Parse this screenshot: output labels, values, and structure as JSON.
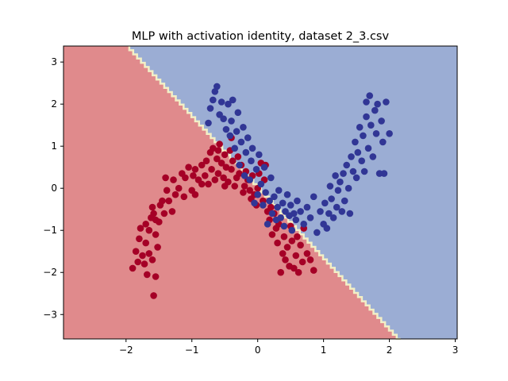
{
  "chart_data": {
    "type": "scatter",
    "title": "MLP with activation identity, dataset 2_3.csv",
    "xlabel": "",
    "ylabel": "",
    "xlim": [
      -2.95,
      3.03
    ],
    "ylim": [
      -3.58,
      3.38
    ],
    "xticks": [
      -2,
      -1,
      0,
      1,
      2,
      3
    ],
    "xtick_labels": [
      "−2",
      "−1",
      "0",
      "1",
      "2",
      "3"
    ],
    "yticks": [
      -3,
      -2,
      -1,
      0,
      1,
      2,
      3
    ],
    "ytick_labels": [
      "−3",
      "−2",
      "−1",
      "0",
      "1",
      "2",
      "3"
    ],
    "grid": false,
    "decision_boundary": {
      "type": "linear",
      "points": [
        [
          -1.95,
          3.38
        ],
        [
          2.17,
          -3.58
        ]
      ],
      "region_colors": {
        "left_below": "#e08a8c",
        "right_above": "#9badd4",
        "boundary": "#f2efc6"
      }
    },
    "series": [
      {
        "color": "#a50026",
        "points": [
          [
            -1.9,
            -1.9
          ],
          [
            -1.85,
            -1.5
          ],
          [
            -1.8,
            -1.2
          ],
          [
            -1.78,
            -0.95
          ],
          [
            -1.75,
            -1.6
          ],
          [
            -1.72,
            -1.8
          ],
          [
            -1.7,
            -1.3
          ],
          [
            -1.68,
            -2.05
          ],
          [
            -1.65,
            -1.55
          ],
          [
            -1.65,
            -1.0
          ],
          [
            -1.62,
            -0.7
          ],
          [
            -1.6,
            -1.7
          ],
          [
            -1.58,
            -2.55
          ],
          [
            -1.58,
            -0.6
          ],
          [
            -1.55,
            -1.1
          ],
          [
            -1.55,
            -2.1
          ],
          [
            -1.52,
            -1.4
          ],
          [
            -1.5,
            -0.8
          ],
          [
            -1.48,
            -0.4
          ],
          [
            -1.45,
            -0.3
          ],
          [
            -1.42,
            -0.6
          ],
          [
            -1.4,
            0.25
          ],
          [
            -1.38,
            -0.05
          ],
          [
            -1.35,
            -0.3
          ],
          [
            -1.3,
            -0.55
          ],
          [
            -1.28,
            0.2
          ],
          [
            -1.25,
            -0.15
          ],
          [
            -1.2,
            0.0
          ],
          [
            -1.15,
            0.35
          ],
          [
            -1.1,
            0.25
          ],
          [
            -1.05,
            0.5
          ],
          [
            -1.0,
            -0.05
          ],
          [
            -0.98,
            0.3
          ],
          [
            -0.95,
            0.45
          ],
          [
            -0.9,
            0.2
          ],
          [
            -0.85,
            0.55
          ],
          [
            -0.8,
            0.3
          ],
          [
            -0.78,
            0.65
          ],
          [
            -0.75,
            0.1
          ],
          [
            -0.72,
            0.85
          ],
          [
            -0.7,
            0.45
          ],
          [
            -0.68,
            0.95
          ],
          [
            -0.65,
            0.2
          ],
          [
            -0.62,
            0.7
          ],
          [
            -0.6,
            0.35
          ],
          [
            -0.58,
            1.05
          ],
          [
            -0.55,
            0.6
          ],
          [
            -0.52,
            0.25
          ],
          [
            -0.5,
            0.8
          ],
          [
            -0.48,
            0.5
          ],
          [
            -0.45,
            0.15
          ],
          [
            -0.42,
            0.9
          ],
          [
            -0.4,
            0.45
          ],
          [
            -0.38,
            0.65
          ],
          [
            -0.35,
            0.05
          ],
          [
            -0.32,
            0.25
          ],
          [
            -0.3,
            0.75
          ],
          [
            -0.28,
            0.35
          ],
          [
            -0.25,
            0.55
          ],
          [
            -0.22,
            -0.1
          ],
          [
            -0.2,
            0.05
          ],
          [
            -0.18,
            0.4
          ],
          [
            -0.15,
            0.2
          ],
          [
            -0.12,
            -0.05
          ],
          [
            -0.1,
            -0.25
          ],
          [
            -0.08,
            0.3
          ],
          [
            -0.05,
            -0.15
          ],
          [
            -0.02,
            -0.4
          ],
          [
            0.0,
            0.0
          ],
          [
            0.05,
            0.6
          ],
          [
            0.08,
            -0.3
          ],
          [
            0.1,
            0.2
          ],
          [
            0.12,
            0.55
          ],
          [
            0.15,
            -0.55
          ],
          [
            0.18,
            -0.75
          ],
          [
            0.2,
            -0.45
          ],
          [
            0.22,
            -1.1
          ],
          [
            0.25,
            -0.6
          ],
          [
            0.28,
            -0.95
          ],
          [
            0.3,
            -1.3
          ],
          [
            0.32,
            -0.85
          ],
          [
            0.35,
            -2.0
          ],
          [
            0.38,
            -1.55
          ],
          [
            0.4,
            -1.15
          ],
          [
            0.42,
            -1.7
          ],
          [
            0.45,
            -1.4
          ],
          [
            0.48,
            -1.85
          ],
          [
            0.5,
            -0.9
          ],
          [
            0.52,
            -1.25
          ],
          [
            0.55,
            -1.9
          ],
          [
            0.58,
            -1.6
          ],
          [
            0.6,
            -1.15
          ],
          [
            0.62,
            -2.0
          ],
          [
            0.65,
            -1.35
          ],
          [
            0.68,
            -1.75
          ],
          [
            0.7,
            -0.95
          ],
          [
            0.75,
            -1.55
          ],
          [
            0.8,
            -1.7
          ],
          [
            0.85,
            -1.95
          ],
          [
            -0.5,
            0.05
          ],
          [
            -0.85,
            0.1
          ],
          [
            -1.12,
            -0.2
          ],
          [
            -1.6,
            -0.45
          ],
          [
            -1.7,
            -0.85
          ],
          [
            -1.82,
            -1.75
          ],
          [
            -1.55,
            -0.75
          ],
          [
            -0.95,
            -0.15
          ],
          [
            -0.6,
            0.9
          ],
          [
            -0.4,
            1.2
          ],
          [
            0.02,
            0.35
          ]
        ]
      },
      {
        "color": "#313695",
        "points": [
          [
            -0.75,
            1.55
          ],
          [
            -0.72,
            1.9
          ],
          [
            -0.68,
            2.1
          ],
          [
            -0.65,
            2.3
          ],
          [
            -0.62,
            2.42
          ],
          [
            -0.58,
            1.75
          ],
          [
            -0.55,
            2.05
          ],
          [
            -0.52,
            1.65
          ],
          [
            -0.48,
            1.4
          ],
          [
            -0.45,
            2.0
          ],
          [
            -0.42,
            1.25
          ],
          [
            -0.4,
            1.6
          ],
          [
            -0.38,
            2.1
          ],
          [
            -0.35,
            0.95
          ],
          [
            -0.32,
            1.35
          ],
          [
            -0.3,
            1.8
          ],
          [
            -0.28,
            0.55
          ],
          [
            -0.25,
            1.1
          ],
          [
            -0.22,
            1.45
          ],
          [
            -0.2,
            0.3
          ],
          [
            -0.18,
            0.85
          ],
          [
            -0.15,
            1.2
          ],
          [
            -0.12,
            0.2
          ],
          [
            -0.1,
            0.65
          ],
          [
            -0.08,
            0.95
          ],
          [
            -0.05,
            -0.35
          ],
          [
            -0.02,
            0.45
          ],
          [
            0.0,
            -0.15
          ],
          [
            0.02,
            0.8
          ],
          [
            0.05,
            0.1
          ],
          [
            0.08,
            -0.4
          ],
          [
            0.1,
            0.5
          ],
          [
            0.12,
            -0.1
          ],
          [
            0.15,
            -0.85
          ],
          [
            0.18,
            -0.3
          ],
          [
            0.2,
            0.25
          ],
          [
            0.22,
            -0.6
          ],
          [
            0.25,
            -0.2
          ],
          [
            0.28,
            -0.75
          ],
          [
            0.3,
            -0.45
          ],
          [
            0.32,
            -0.05
          ],
          [
            0.35,
            -0.7
          ],
          [
            0.38,
            -0.35
          ],
          [
            0.4,
            -0.9
          ],
          [
            0.42,
            -0.55
          ],
          [
            0.45,
            -0.15
          ],
          [
            0.48,
            -0.65
          ],
          [
            0.5,
            -0.4
          ],
          [
            0.52,
            -1.0
          ],
          [
            0.55,
            -0.6
          ],
          [
            0.58,
            -0.75
          ],
          [
            0.6,
            -0.3
          ],
          [
            0.65,
            -0.55
          ],
          [
            0.7,
            -0.85
          ],
          [
            0.75,
            -0.45
          ],
          [
            0.8,
            -0.7
          ],
          [
            0.85,
            -0.2
          ],
          [
            0.9,
            -1.05
          ],
          [
            0.95,
            -0.55
          ],
          [
            1.0,
            -0.85
          ],
          [
            1.02,
            -0.35
          ],
          [
            1.05,
            -0.95
          ],
          [
            1.08,
            -0.6
          ],
          [
            1.1,
            0.05
          ],
          [
            1.12,
            -0.25
          ],
          [
            1.15,
            -0.7
          ],
          [
            1.18,
            0.3
          ],
          [
            1.2,
            -0.45
          ],
          [
            1.22,
            -0.05
          ],
          [
            1.25,
            0.15
          ],
          [
            1.28,
            -0.55
          ],
          [
            1.3,
            0.35
          ],
          [
            1.32,
            -0.3
          ],
          [
            1.35,
            0.55
          ],
          [
            1.38,
            0.0
          ],
          [
            1.4,
            -0.6
          ],
          [
            1.42,
            0.75
          ],
          [
            1.45,
            0.4
          ],
          [
            1.48,
            1.1
          ],
          [
            1.5,
            0.25
          ],
          [
            1.52,
            0.85
          ],
          [
            1.55,
            1.45
          ],
          [
            1.58,
            0.65
          ],
          [
            1.6,
            1.25
          ],
          [
            1.62,
            0.4
          ],
          [
            1.65,
            1.7
          ],
          [
            1.68,
            0.95
          ],
          [
            1.7,
            2.2
          ],
          [
            1.72,
            1.5
          ],
          [
            1.75,
            0.75
          ],
          [
            1.78,
            1.85
          ],
          [
            1.8,
            1.3
          ],
          [
            1.82,
            2.0
          ],
          [
            1.85,
            0.35
          ],
          [
            1.88,
            1.6
          ],
          [
            1.9,
            1.1
          ],
          [
            1.95,
            2.05
          ],
          [
            2.0,
            1.3
          ],
          [
            1.65,
            2.05
          ],
          [
            1.92,
            0.35
          ]
        ]
      }
    ]
  }
}
